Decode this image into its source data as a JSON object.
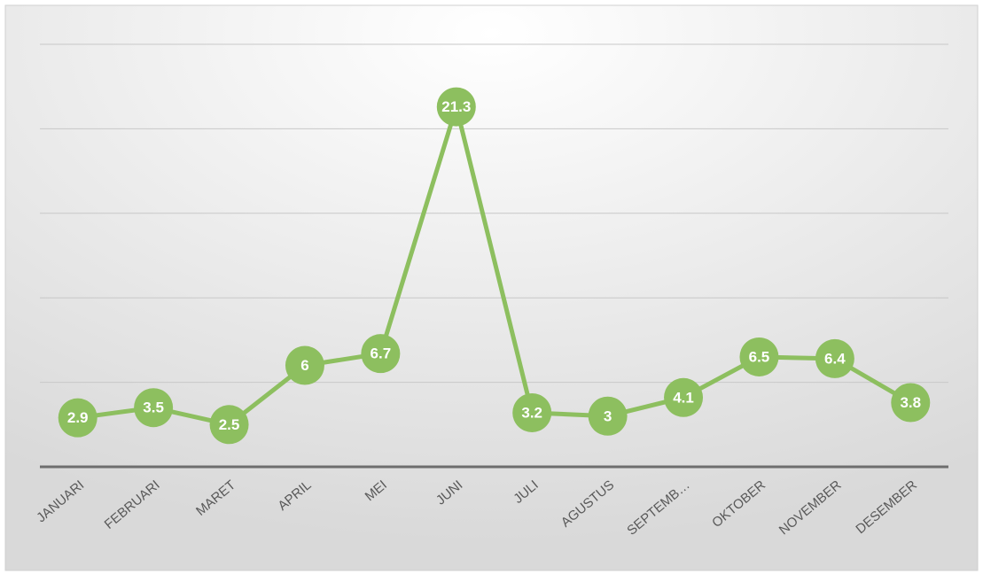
{
  "chart_data": {
    "type": "line",
    "categories": [
      "JANUARI",
      "FEBRUARI",
      "MARET",
      "APRIL",
      "MEI",
      "JUNI",
      "JULI",
      "AGUSTUS",
      "SEPTEMB…",
      "OKTOBER",
      "NOVEMBER",
      "DESEMBER"
    ],
    "series": [
      {
        "color": "#8dbf5f",
        "values": [
          2.9,
          3.5,
          2.5,
          6,
          6.7,
          21.3,
          3.2,
          3,
          4.1,
          6.5,
          6.4,
          3.8
        ]
      }
    ],
    "ylim": [
      0,
      25
    ],
    "yticks": [
      0,
      5,
      10,
      15,
      20,
      25
    ],
    "grid": true
  }
}
